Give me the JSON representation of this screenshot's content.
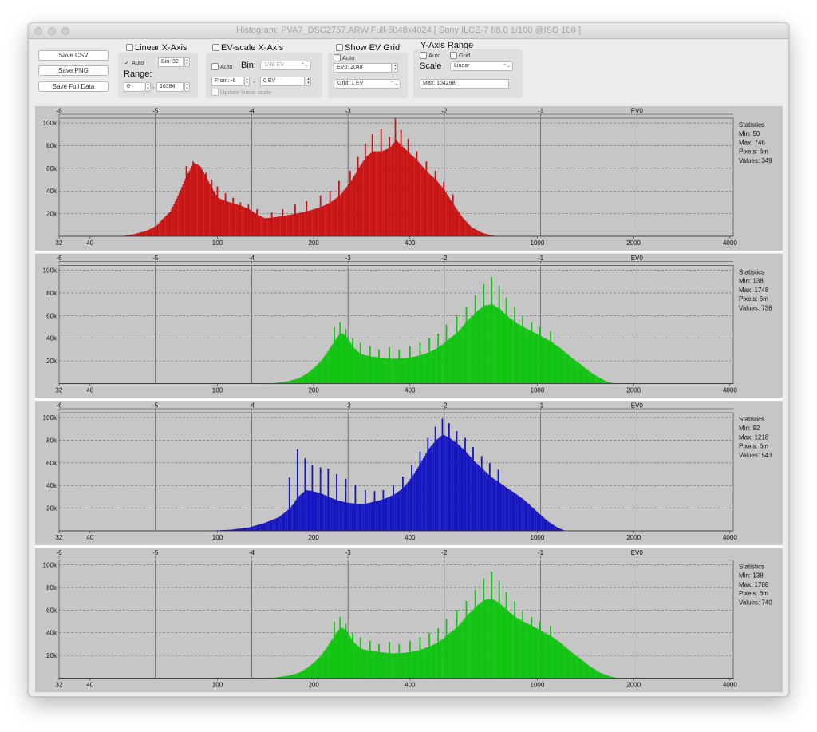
{
  "window": {
    "title": "Histogram: PVA7_DSC2757.ARW Full-6048x4024 [ Sony ILCE-7 f/8.0 1/100 @ISO 100 ]"
  },
  "buttons": {
    "save_csv": "Save CSV",
    "save_png": "Save PNG",
    "save_full": "Save Full Data"
  },
  "linear_x": {
    "title": "Linear X-Axis",
    "checked": false,
    "auto_label": "Auto",
    "auto_checked": true,
    "bin_field": "Bin: 32",
    "range_label": "Range:",
    "range_from": "0",
    "range_to": "16384"
  },
  "ev_x": {
    "title": "EV-scale X-Axis",
    "checked": false,
    "auto_label": "Auto",
    "auto_checked": false,
    "bin_label": "Bin:",
    "bin_select": "1/48 EV",
    "from_field": "From: -6",
    "dash": "-",
    "to_field": "0 EV",
    "update_label": "Update linear scale"
  },
  "ev_grid": {
    "title": "Show EV Grid",
    "checked": false,
    "auto_label": "Auto",
    "auto_checked": false,
    "ev0_field": "EV0: 2048",
    "grid_select": "Grid: 1 EV"
  },
  "y_axis": {
    "title": "Y-Axis Range",
    "auto_label": "Auto",
    "auto_checked": false,
    "grid_label": "Grid",
    "grid_checked": false,
    "scale_label": "Scale",
    "scale_select": "Linear",
    "max_field": "Max: 104298"
  },
  "axis": {
    "ev_ticks": [
      {
        "ev": -6,
        "label": "-6"
      },
      {
        "ev": -5,
        "label": "-5"
      },
      {
        "ev": -4,
        "label": "-4"
      },
      {
        "ev": -3,
        "label": "-3"
      },
      {
        "ev": -2,
        "label": "-2"
      },
      {
        "ev": -1,
        "label": "-1"
      },
      {
        "ev": 0,
        "label": "EV0"
      }
    ],
    "value_ticks": [
      32,
      40,
      100,
      200,
      400,
      1000,
      2000,
      4000
    ],
    "y_ticks": [
      {
        "value": 20000,
        "label": "20k"
      },
      {
        "value": 40000,
        "label": "40k"
      },
      {
        "value": 60000,
        "label": "60k"
      },
      {
        "value": 80000,
        "label": "80k"
      },
      {
        "value": 100000,
        "label": "100k"
      }
    ],
    "ev0_value": 2048,
    "x_min": 32,
    "x_max": 4096,
    "y_max": 104298
  },
  "stats_title": "Statistics",
  "chart_data": [
    {
      "type": "bar",
      "name": "red",
      "color": "#c81414",
      "stats": [
        "Min: 50",
        "Max: 746",
        "Pixels: 6m",
        "Values: 349"
      ],
      "points": [
        [
          50,
          0
        ],
        [
          55,
          2000
        ],
        [
          60,
          5000
        ],
        [
          64,
          9000
        ],
        [
          67,
          15000
        ],
        [
          71,
          22000
        ],
        [
          75,
          36000
        ],
        [
          80,
          54000
        ],
        [
          84,
          65000
        ],
        [
          88,
          62000
        ],
        [
          92,
          52000
        ],
        [
          96,
          42000
        ],
        [
          100,
          34000
        ],
        [
          106,
          31000
        ],
        [
          112,
          29000
        ],
        [
          118,
          27000
        ],
        [
          125,
          24000
        ],
        [
          133,
          19000
        ],
        [
          140,
          16000
        ],
        [
          148,
          16500
        ],
        [
          160,
          18000
        ],
        [
          175,
          20000
        ],
        [
          190,
          22000
        ],
        [
          210,
          26000
        ],
        [
          225,
          30000
        ],
        [
          240,
          36000
        ],
        [
          260,
          48000
        ],
        [
          275,
          60000
        ],
        [
          290,
          70000
        ],
        [
          305,
          75000
        ],
        [
          325,
          75000
        ],
        [
          345,
          78000
        ],
        [
          360,
          85000
        ],
        [
          375,
          80000
        ],
        [
          395,
          74000
        ],
        [
          420,
          67000
        ],
        [
          450,
          57000
        ],
        [
          480,
          50000
        ],
        [
          510,
          41000
        ],
        [
          545,
          28000
        ],
        [
          580,
          17000
        ],
        [
          620,
          8000
        ],
        [
          670,
          3000
        ],
        [
          710,
          1000
        ],
        [
          746,
          0
        ]
      ],
      "spikes": [
        [
          80,
          62000
        ],
        [
          84,
          66000
        ],
        [
          88,
          62000
        ],
        [
          92,
          56000
        ],
        [
          96,
          50000
        ],
        [
          100,
          44000
        ],
        [
          106,
          38000
        ],
        [
          112,
          34000
        ],
        [
          118,
          30000
        ],
        [
          125,
          28000
        ],
        [
          133,
          24000
        ],
        [
          148,
          21000
        ],
        [
          160,
          24000
        ],
        [
          175,
          28000
        ],
        [
          190,
          31000
        ],
        [
          210,
          36000
        ],
        [
          225,
          40000
        ],
        [
          240,
          49000
        ],
        [
          260,
          58000
        ],
        [
          275,
          70000
        ],
        [
          290,
          82000
        ],
        [
          305,
          90000
        ],
        [
          325,
          95000
        ],
        [
          345,
          88000
        ],
        [
          360,
          104000
        ],
        [
          375,
          94000
        ],
        [
          395,
          86000
        ],
        [
          420,
          75000
        ],
        [
          450,
          66000
        ],
        [
          480,
          58000
        ],
        [
          510,
          48000
        ],
        [
          545,
          37000
        ]
      ]
    },
    {
      "type": "bar",
      "name": "green",
      "color": "#11c411",
      "stats": [
        "Min: 138",
        "Max: 1748",
        "Pixels: 6m",
        "Values: 738"
      ],
      "points": [
        [
          138,
          0
        ],
        [
          150,
          500
        ],
        [
          165,
          2000
        ],
        [
          180,
          5000
        ],
        [
          190,
          9000
        ],
        [
          200,
          14000
        ],
        [
          210,
          20000
        ],
        [
          220,
          28000
        ],
        [
          232,
          38000
        ],
        [
          242,
          45000
        ],
        [
          252,
          42000
        ],
        [
          265,
          32000
        ],
        [
          280,
          26000
        ],
        [
          300,
          24000
        ],
        [
          320,
          23000
        ],
        [
          345,
          22000
        ],
        [
          370,
          22000
        ],
        [
          400,
          23000
        ],
        [
          430,
          25000
        ],
        [
          460,
          28000
        ],
        [
          490,
          32000
        ],
        [
          520,
          38000
        ],
        [
          560,
          45000
        ],
        [
          600,
          55000
        ],
        [
          640,
          63000
        ],
        [
          680,
          69000
        ],
        [
          720,
          70000
        ],
        [
          760,
          66000
        ],
        [
          800,
          60000
        ],
        [
          850,
          54000
        ],
        [
          900,
          50000
        ],
        [
          960,
          46000
        ],
        [
          1020,
          42000
        ],
        [
          1100,
          37000
        ],
        [
          1180,
          31000
        ],
        [
          1260,
          24000
        ],
        [
          1360,
          17000
        ],
        [
          1460,
          10000
        ],
        [
          1560,
          5000
        ],
        [
          1650,
          1500
        ],
        [
          1748,
          0
        ]
      ],
      "spikes": [
        [
          232,
          50000
        ],
        [
          242,
          54000
        ],
        [
          252,
          48000
        ],
        [
          265,
          40000
        ],
        [
          280,
          36000
        ],
        [
          300,
          33000
        ],
        [
          320,
          30000
        ],
        [
          345,
          32000
        ],
        [
          370,
          30000
        ],
        [
          400,
          33000
        ],
        [
          430,
          36000
        ],
        [
          460,
          40000
        ],
        [
          490,
          44000
        ],
        [
          520,
          52000
        ],
        [
          560,
          60000
        ],
        [
          600,
          68000
        ],
        [
          640,
          78000
        ],
        [
          680,
          88000
        ],
        [
          720,
          94000
        ],
        [
          760,
          86000
        ],
        [
          800,
          76000
        ],
        [
          850,
          68000
        ],
        [
          900,
          60000
        ],
        [
          960,
          54000
        ],
        [
          1020,
          50000
        ],
        [
          1100,
          46000
        ]
      ]
    },
    {
      "type": "bar",
      "name": "blue",
      "color": "#1616c2",
      "stats": [
        "Min: 92",
        "Max: 1218",
        "Pixels: 6m",
        "Values: 543"
      ],
      "points": [
        [
          92,
          0
        ],
        [
          110,
          1000
        ],
        [
          125,
          3000
        ],
        [
          140,
          7000
        ],
        [
          155,
          12000
        ],
        [
          168,
          20000
        ],
        [
          178,
          30000
        ],
        [
          188,
          36000
        ],
        [
          198,
          35000
        ],
        [
          210,
          33000
        ],
        [
          222,
          30000
        ],
        [
          236,
          27000
        ],
        [
          252,
          25000
        ],
        [
          270,
          24000
        ],
        [
          290,
          24000
        ],
        [
          310,
          26000
        ],
        [
          330,
          28000
        ],
        [
          355,
          32000
        ],
        [
          380,
          38000
        ],
        [
          405,
          48000
        ],
        [
          430,
          60000
        ],
        [
          455,
          72000
        ],
        [
          480,
          80000
        ],
        [
          505,
          85000
        ],
        [
          530,
          82000
        ],
        [
          560,
          77000
        ],
        [
          595,
          70000
        ],
        [
          630,
          62000
        ],
        [
          670,
          55000
        ],
        [
          710,
          48000
        ],
        [
          755,
          43000
        ],
        [
          800,
          38000
        ],
        [
          850,
          33000
        ],
        [
          900,
          28000
        ],
        [
          950,
          22000
        ],
        [
          1010,
          15000
        ],
        [
          1080,
          8000
        ],
        [
          1150,
          3000
        ],
        [
          1218,
          0
        ]
      ],
      "spikes": [
        [
          168,
          47000
        ],
        [
          178,
          72000
        ],
        [
          188,
          64000
        ],
        [
          198,
          58000
        ],
        [
          210,
          56000
        ],
        [
          222,
          55000
        ],
        [
          236,
          50000
        ],
        [
          252,
          46000
        ],
        [
          270,
          40000
        ],
        [
          290,
          36000
        ],
        [
          310,
          35000
        ],
        [
          330,
          36000
        ],
        [
          355,
          40000
        ],
        [
          380,
          48000
        ],
        [
          405,
          58000
        ],
        [
          430,
          70000
        ],
        [
          455,
          82000
        ],
        [
          480,
          92000
        ],
        [
          505,
          99000
        ],
        [
          530,
          95000
        ],
        [
          560,
          88000
        ],
        [
          595,
          82000
        ],
        [
          630,
          74000
        ],
        [
          670,
          66000
        ],
        [
          710,
          60000
        ],
        [
          755,
          54000
        ]
      ]
    },
    {
      "type": "bar",
      "name": "green2",
      "color": "#11c411",
      "stats": [
        "Min: 138",
        "Max: 1788",
        "Pixels: 6m",
        "Values: 740"
      ],
      "points": [
        [
          138,
          0
        ],
        [
          150,
          500
        ],
        [
          165,
          2000
        ],
        [
          180,
          5000
        ],
        [
          190,
          9000
        ],
        [
          200,
          14000
        ],
        [
          210,
          20000
        ],
        [
          220,
          28000
        ],
        [
          232,
          38000
        ],
        [
          242,
          45000
        ],
        [
          252,
          42000
        ],
        [
          265,
          32000
        ],
        [
          280,
          26000
        ],
        [
          300,
          24000
        ],
        [
          320,
          23000
        ],
        [
          345,
          22000
        ],
        [
          370,
          22000
        ],
        [
          400,
          23000
        ],
        [
          430,
          25000
        ],
        [
          460,
          28000
        ],
        [
          490,
          32000
        ],
        [
          520,
          38000
        ],
        [
          560,
          45000
        ],
        [
          600,
          55000
        ],
        [
          640,
          63000
        ],
        [
          680,
          69000
        ],
        [
          720,
          70000
        ],
        [
          760,
          66000
        ],
        [
          800,
          60000
        ],
        [
          850,
          54000
        ],
        [
          900,
          50000
        ],
        [
          960,
          46000
        ],
        [
          1020,
          42000
        ],
        [
          1100,
          37000
        ],
        [
          1180,
          31000
        ],
        [
          1260,
          24000
        ],
        [
          1360,
          17000
        ],
        [
          1460,
          10000
        ],
        [
          1560,
          5000
        ],
        [
          1680,
          1500
        ],
        [
          1788,
          0
        ]
      ],
      "spikes": [
        [
          232,
          50000
        ],
        [
          242,
          54000
        ],
        [
          252,
          48000
        ],
        [
          265,
          40000
        ],
        [
          280,
          36000
        ],
        [
          300,
          33000
        ],
        [
          320,
          30000
        ],
        [
          345,
          32000
        ],
        [
          370,
          30000
        ],
        [
          400,
          33000
        ],
        [
          430,
          36000
        ],
        [
          460,
          40000
        ],
        [
          490,
          44000
        ],
        [
          520,
          52000
        ],
        [
          560,
          60000
        ],
        [
          600,
          68000
        ],
        [
          640,
          78000
        ],
        [
          680,
          88000
        ],
        [
          720,
          94000
        ],
        [
          760,
          86000
        ],
        [
          800,
          76000
        ],
        [
          850,
          68000
        ],
        [
          900,
          60000
        ],
        [
          960,
          54000
        ],
        [
          1020,
          50000
        ],
        [
          1100,
          46000
        ]
      ]
    }
  ]
}
